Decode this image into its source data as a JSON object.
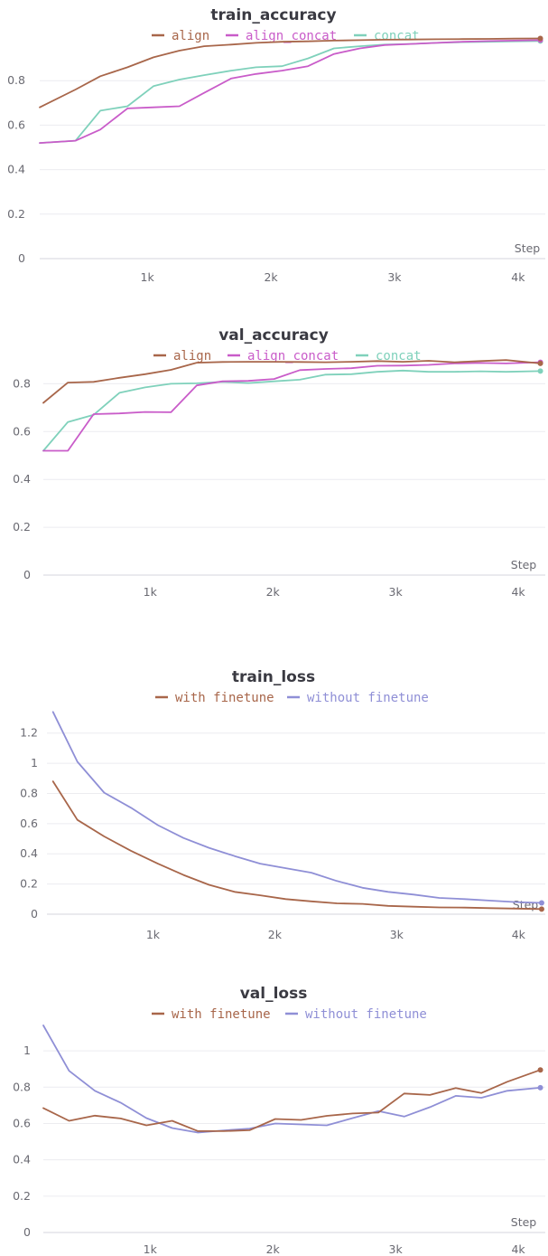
{
  "chart_data": [
    {
      "type": "line",
      "title": "train_accuracy",
      "xlabel": "Step",
      "ylabel": "",
      "xlim": [
        130,
        4220
      ],
      "ylim": [
        0,
        1.0
      ],
      "xticks": [
        1000,
        2000,
        3000,
        4000
      ],
      "xtick_labels": [
        "1k",
        "2k",
        "3k",
        "4k"
      ],
      "yticks": [
        0,
        0.2,
        0.4,
        0.6,
        0.8
      ],
      "ytick_labels": [
        "0",
        "0.2",
        "0.4",
        "0.6",
        "0.8"
      ],
      "grid": true,
      "legend": "top",
      "series": [
        {
          "name": "align",
          "color": "#a8664a",
          "x": [
            130,
            420,
            620,
            840,
            1050,
            1260,
            1460,
            1680,
            1880,
            2090,
            2300,
            2510,
            2720,
            2920,
            3130,
            3340,
            3550,
            3760,
            3970,
            4180
          ],
          "y": [
            0.68,
            0.76,
            0.82,
            0.86,
            0.905,
            0.935,
            0.955,
            0.962,
            0.97,
            0.975,
            0.977,
            0.98,
            0.982,
            0.984,
            0.985,
            0.986,
            0.987,
            0.988,
            0.989,
            0.99
          ]
        },
        {
          "name": "align_concat",
          "color": "#c95cc9",
          "x": [
            130,
            420,
            620,
            840,
            1050,
            1260,
            1460,
            1680,
            1880,
            2090,
            2300,
            2510,
            2720,
            2920,
            3130,
            3340,
            3550,
            3760,
            3970,
            4180
          ],
          "y": [
            0.52,
            0.53,
            0.58,
            0.675,
            0.68,
            0.685,
            0.745,
            0.81,
            0.83,
            0.845,
            0.865,
            0.92,
            0.945,
            0.96,
            0.965,
            0.97,
            0.975,
            0.978,
            0.98,
            0.982
          ]
        },
        {
          "name": "concat",
          "color": "#7fd1bb",
          "x": [
            130,
            420,
            620,
            840,
            1050,
            1260,
            1460,
            1680,
            1880,
            2090,
            2300,
            2510,
            2720,
            2920,
            3130,
            3340,
            3550,
            3760,
            3970,
            4180
          ],
          "y": [
            0.52,
            0.53,
            0.665,
            0.685,
            0.775,
            0.805,
            0.825,
            0.845,
            0.86,
            0.865,
            0.9,
            0.945,
            0.955,
            0.962,
            0.965,
            0.97,
            0.973,
            0.975,
            0.977,
            0.978
          ]
        }
      ]
    },
    {
      "type": "line",
      "title": "val_accuracy",
      "xlabel": "Step",
      "ylabel": "",
      "xlim": [
        130,
        4220
      ],
      "ylim": [
        0,
        0.93
      ],
      "xticks": [
        1000,
        2000,
        3000,
        4000
      ],
      "xtick_labels": [
        "1k",
        "2k",
        "3k",
        "4k"
      ],
      "yticks": [
        0,
        0.2,
        0.4,
        0.6,
        0.8
      ],
      "ytick_labels": [
        "0",
        "0.2",
        "0.4",
        "0.6",
        "0.8"
      ],
      "grid": true,
      "legend": "top",
      "series": [
        {
          "name": "align",
          "color": "#a8664a",
          "x": [
            130,
            330,
            540,
            750,
            960,
            1170,
            1380,
            1590,
            1800,
            2010,
            2220,
            2430,
            2640,
            2850,
            3060,
            3270,
            3480,
            3690,
            3900,
            4180
          ],
          "y": [
            0.72,
            0.805,
            0.808,
            0.825,
            0.84,
            0.858,
            0.888,
            0.891,
            0.892,
            0.892,
            0.891,
            0.89,
            0.892,
            0.895,
            0.892,
            0.896,
            0.89,
            0.895,
            0.899,
            0.885
          ]
        },
        {
          "name": "align_concat",
          "color": "#c95cc9",
          "x": [
            130,
            330,
            540,
            750,
            960,
            1170,
            1380,
            1590,
            1800,
            2010,
            2220,
            2430,
            2640,
            2850,
            3060,
            3270,
            3480,
            3690,
            3900,
            4180
          ],
          "y": [
            0.52,
            0.52,
            0.673,
            0.676,
            0.682,
            0.681,
            0.793,
            0.81,
            0.812,
            0.82,
            0.857,
            0.862,
            0.865,
            0.875,
            0.876,
            0.879,
            0.885,
            0.887,
            0.885,
            0.89
          ]
        },
        {
          "name": "concat",
          "color": "#7fd1bb",
          "x": [
            130,
            330,
            540,
            750,
            960,
            1170,
            1380,
            1590,
            1800,
            2010,
            2220,
            2430,
            2640,
            2850,
            3060,
            3270,
            3480,
            3690,
            3900,
            4180
          ],
          "y": [
            0.52,
            0.64,
            0.67,
            0.762,
            0.785,
            0.8,
            0.802,
            0.808,
            0.803,
            0.81,
            0.817,
            0.838,
            0.84,
            0.85,
            0.855,
            0.85,
            0.85,
            0.852,
            0.85,
            0.853
          ]
        }
      ]
    },
    {
      "type": "line",
      "title": "train_loss",
      "xlabel": "Step",
      "ylabel": "",
      "xlim": [
        130,
        4220
      ],
      "ylim": [
        0,
        1.36
      ],
      "xticks": [
        1000,
        2000,
        3000,
        4000
      ],
      "xtick_labels": [
        "1k",
        "2k",
        "3k",
        "4k"
      ],
      "yticks": [
        0,
        0.2,
        0.4,
        0.6,
        0.8,
        1,
        1.2
      ],
      "ytick_labels": [
        "0",
        "0.2",
        "0.4",
        "0.6",
        "0.8",
        "1",
        "1.2"
      ],
      "grid": true,
      "legend": "top",
      "series": [
        {
          "name": "with finetune",
          "color": "#a8664a",
          "x": [
            180,
            380,
            600,
            820,
            1040,
            1250,
            1460,
            1670,
            1880,
            2090,
            2300,
            2510,
            2720,
            2930,
            3140,
            3350,
            3560,
            3770,
            3980,
            4190
          ],
          "y": [
            0.88,
            0.625,
            0.515,
            0.42,
            0.335,
            0.26,
            0.195,
            0.148,
            0.125,
            0.1,
            0.085,
            0.072,
            0.068,
            0.055,
            0.05,
            0.045,
            0.044,
            0.04,
            0.037,
            0.034
          ]
        },
        {
          "name": "without finetune",
          "color": "#8f8fd6",
          "x": [
            180,
            380,
            600,
            820,
            1040,
            1250,
            1460,
            1670,
            1880,
            2090,
            2300,
            2510,
            2720,
            2930,
            3140,
            3350,
            3560,
            3770,
            3980,
            4190
          ],
          "y": [
            1.34,
            1.01,
            0.805,
            0.705,
            0.59,
            0.505,
            0.44,
            0.385,
            0.335,
            0.305,
            0.275,
            0.22,
            0.175,
            0.148,
            0.13,
            0.108,
            0.1,
            0.09,
            0.08,
            0.075
          ]
        }
      ]
    },
    {
      "type": "line",
      "title": "val_loss",
      "xlabel": "Step",
      "ylabel": "",
      "xlim": [
        130,
        4220
      ],
      "ylim": [
        0,
        1.15
      ],
      "xticks": [
        1000,
        2000,
        3000,
        4000
      ],
      "xtick_labels": [
        "1k",
        "2k",
        "3k",
        "4k"
      ],
      "yticks": [
        0,
        0.2,
        0.4,
        0.6,
        0.8,
        1
      ],
      "ytick_labels": [
        "0",
        "0.2",
        "0.4",
        "0.6",
        "0.8",
        "1"
      ],
      "grid": true,
      "legend": "top",
      "series": [
        {
          "name": "with finetune",
          "color": "#a8664a",
          "x": [
            130,
            340,
            550,
            760,
            970,
            1180,
            1390,
            1600,
            1810,
            2020,
            2230,
            2440,
            2650,
            2860,
            3070,
            3280,
            3490,
            3700,
            3910,
            4180
          ],
          "y": [
            0.685,
            0.615,
            0.643,
            0.628,
            0.59,
            0.615,
            0.558,
            0.558,
            0.563,
            0.625,
            0.62,
            0.642,
            0.655,
            0.66,
            0.765,
            0.757,
            0.795,
            0.768,
            0.83,
            0.895
          ]
        },
        {
          "name": "without finetune",
          "color": "#8f8fd6",
          "x": [
            130,
            340,
            550,
            760,
            970,
            1180,
            1390,
            1600,
            1810,
            2020,
            2230,
            2440,
            2650,
            2860,
            3070,
            3280,
            3490,
            3700,
            3910,
            4180
          ],
          "y": [
            1.14,
            0.89,
            0.78,
            0.715,
            0.63,
            0.575,
            0.55,
            0.562,
            0.572,
            0.6,
            0.595,
            0.59,
            0.63,
            0.668,
            0.638,
            0.69,
            0.752,
            0.742,
            0.78,
            0.797
          ]
        }
      ]
    }
  ]
}
